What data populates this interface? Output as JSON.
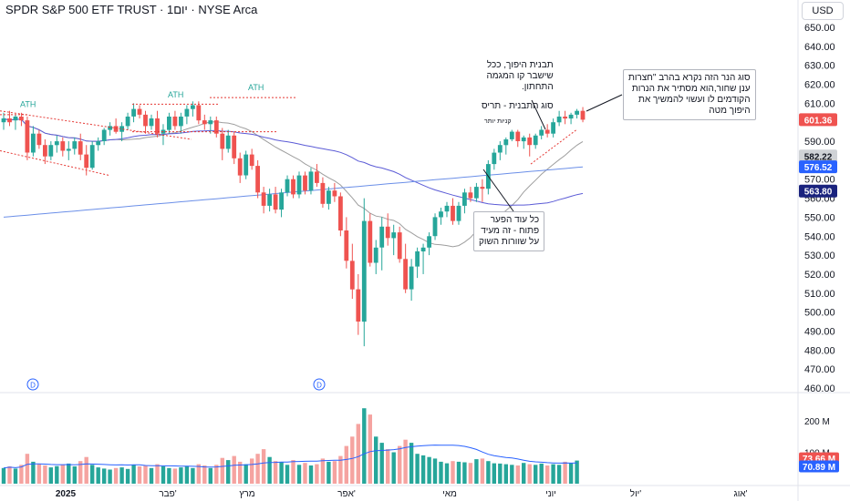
{
  "header": {
    "title": "SPDR S&P 500 ETF TRUST · 1יום · NYSE Arca"
  },
  "currency_button": "USD",
  "colors": {
    "up": "#26a69a",
    "down": "#ef5350",
    "ma_gray": "#9e9e9e",
    "ma_purple": "#5b5bd6",
    "ma_blue": "#6b8fe8",
    "ath_line": "#e53935"
  },
  "annotations": {
    "bubble_right": [
      "סוג הנר הזה נקרא בהרב \"חצרות",
      "ענן שחור,הוא מסתיר את הנרות",
      "הקודמים לו ועשוי להמשיך את",
      "היפוך מטה"
    ],
    "pattern_text": [
      "תבנית היפוך, ככל",
      "שישבר קו המגמה",
      "התחתון."
    ],
    "pattern_name": "סוג התבנית - תריס",
    "gap_text": [
      "כל עוד הפער",
      "פתוח - זה מעיד",
      "על שוורות השוק"
    ],
    "small_label": "קניות יותר",
    "ath_labels": [
      "ATH",
      "ATH",
      "ATH"
    ],
    "dividend_marker": "D"
  },
  "chart_data": {
    "type": "candlestick",
    "title": "SPDR S&P 500 ETF TRUST · 1יום · NYSE Arca",
    "price_axis": {
      "ticks": [
        460,
        470,
        480,
        490,
        500,
        510,
        520,
        530,
        540,
        550,
        560,
        570,
        580,
        590,
        600,
        610,
        620,
        630,
        640,
        650
      ],
      "range": [
        457,
        654
      ]
    },
    "price_badges": [
      {
        "value": "601.36",
        "color": "#ef5350",
        "price": 601.36
      },
      {
        "value": "582.22",
        "color": "#cfd2d6",
        "price": 582.22
      },
      {
        "value": "576.52",
        "color": "#2962ff",
        "price": 576.52
      },
      {
        "value": "563.80",
        "color": "#1a237e",
        "price": 563.8
      }
    ],
    "volume_axis": {
      "ticks": [
        {
          "label": "200 M",
          "value": 200
        },
        {
          "label": "100 M",
          "value": 100
        }
      ],
      "badges": [
        {
          "value": "73.66 M",
          "color": "#ef5350",
          "v": 73.66
        },
        {
          "value": "70.89 M",
          "color": "#2962ff",
          "v": 70.89
        }
      ]
    },
    "time_axis": [
      "2025",
      "פבר'",
      "מרץ",
      "אפר'",
      "מאי",
      "יוני",
      "יול'",
      "אוג'"
    ],
    "candles_ohlc": [
      [
        600,
        605,
        596,
        602
      ],
      [
        602,
        606,
        598,
        600
      ],
      [
        601,
        604,
        596,
        603
      ],
      [
        603,
        605,
        598,
        601
      ],
      [
        601,
        603,
        580,
        584
      ],
      [
        584,
        598,
        582,
        594
      ],
      [
        594,
        596,
        586,
        588
      ],
      [
        588,
        591,
        578,
        582
      ],
      [
        582,
        590,
        580,
        588
      ],
      [
        588,
        593,
        584,
        590
      ],
      [
        590,
        592,
        582,
        585
      ],
      [
        585,
        590,
        580,
        586
      ],
      [
        586,
        592,
        583,
        590
      ],
      [
        590,
        594,
        580,
        583
      ],
      [
        583,
        588,
        572,
        576
      ],
      [
        576,
        590,
        575,
        588
      ],
      [
        588,
        592,
        585,
        590
      ],
      [
        590,
        597,
        588,
        596
      ],
      [
        596,
        600,
        593,
        598
      ],
      [
        598,
        602,
        594,
        595
      ],
      [
        595,
        600,
        590,
        598
      ],
      [
        598,
        605,
        596,
        603
      ],
      [
        603,
        610,
        600,
        607
      ],
      [
        607,
        609,
        602,
        604
      ],
      [
        604,
        606,
        594,
        598
      ],
      [
        598,
        604,
        596,
        602
      ],
      [
        602,
        606,
        592,
        594
      ],
      [
        594,
        599,
        588,
        596
      ],
      [
        596,
        605,
        594,
        603
      ],
      [
        603,
        606,
        596,
        598
      ],
      [
        598,
        605,
        594,
        603
      ],
      [
        603,
        609,
        599,
        607
      ],
      [
        607,
        611,
        603,
        609
      ],
      [
        609,
        611,
        599,
        601
      ],
      [
        601,
        604,
        596,
        599
      ],
      [
        599,
        603,
        594,
        601
      ],
      [
        601,
        603,
        592,
        594
      ],
      [
        594,
        597,
        580,
        586
      ],
      [
        586,
        596,
        584,
        593
      ],
      [
        593,
        595,
        578,
        581
      ],
      [
        581,
        584,
        568,
        572
      ],
      [
        572,
        585,
        570,
        583
      ],
      [
        583,
        586,
        575,
        577
      ],
      [
        577,
        580,
        560,
        563
      ],
      [
        563,
        566,
        552,
        556
      ],
      [
        556,
        565,
        553,
        562
      ],
      [
        562,
        566,
        552,
        554
      ],
      [
        554,
        565,
        550,
        563
      ],
      [
        563,
        572,
        561,
        570
      ],
      [
        570,
        572,
        560,
        562
      ],
      [
        562,
        574,
        560,
        572
      ],
      [
        572,
        574,
        562,
        564
      ],
      [
        564,
        576,
        562,
        574
      ],
      [
        574,
        578,
        566,
        568
      ],
      [
        568,
        571,
        555,
        557
      ],
      [
        557,
        566,
        554,
        564
      ],
      [
        564,
        568,
        558,
        561
      ],
      [
        561,
        563,
        540,
        543
      ],
      [
        543,
        550,
        523,
        527
      ],
      [
        527,
        536,
        507,
        512
      ],
      [
        512,
        520,
        488,
        495
      ],
      [
        495,
        560,
        482,
        548
      ],
      [
        548,
        552,
        524,
        526
      ],
      [
        526,
        538,
        520,
        534
      ],
      [
        534,
        550,
        522,
        545
      ],
      [
        545,
        552,
        535,
        539
      ],
      [
        539,
        546,
        530,
        542
      ],
      [
        542,
        545,
        526,
        528
      ],
      [
        528,
        536,
        510,
        512
      ],
      [
        512,
        528,
        506,
        524
      ],
      [
        524,
        534,
        518,
        532
      ],
      [
        532,
        536,
        520,
        534
      ],
      [
        534,
        542,
        530,
        540
      ],
      [
        540,
        552,
        538,
        550
      ],
      [
        550,
        555,
        546,
        553
      ],
      [
        553,
        558,
        550,
        556
      ],
      [
        556,
        560,
        546,
        548
      ],
      [
        548,
        558,
        546,
        556
      ],
      [
        556,
        565,
        552,
        563
      ],
      [
        563,
        566,
        558,
        560
      ],
      [
        560,
        568,
        558,
        566
      ],
      [
        566,
        570,
        558,
        565
      ],
      [
        565,
        580,
        562,
        578
      ],
      [
        578,
        586,
        575,
        584
      ],
      [
        584,
        590,
        580,
        588
      ],
      [
        588,
        592,
        583,
        591
      ],
      [
        591,
        596,
        590,
        595
      ],
      [
        595,
        596,
        587,
        590
      ],
      [
        590,
        593,
        586,
        592
      ],
      [
        592,
        594,
        582,
        588
      ],
      [
        588,
        594,
        586,
        593
      ],
      [
        593,
        598,
        591,
        596
      ],
      [
        596,
        599,
        592,
        594
      ],
      [
        594,
        602,
        592,
        600
      ],
      [
        600,
        606,
        598,
        603
      ],
      [
        603,
        606,
        599,
        602
      ],
      [
        602,
        605,
        599,
        604
      ],
      [
        604,
        607,
        602,
        606
      ],
      [
        606,
        608,
        600,
        601.36
      ]
    ],
    "volume_M": [
      50,
      55,
      48,
      60,
      95,
      70,
      62,
      58,
      52,
      56,
      60,
      64,
      55,
      72,
      85,
      60,
      52,
      48,
      45,
      50,
      52,
      47,
      60,
      55,
      58,
      50,
      62,
      55,
      50,
      48,
      52,
      55,
      50,
      62,
      58,
      50,
      60,
      82,
      75,
      88,
      70,
      62,
      80,
      95,
      110,
      85,
      72,
      68,
      60,
      75,
      60,
      66,
      58,
      62,
      80,
      70,
      72,
      88,
      120,
      150,
      190,
      240,
      220,
      150,
      130,
      110,
      100,
      120,
      140,
      130,
      95,
      90,
      85,
      80,
      70,
      65,
      72,
      70,
      68,
      66,
      78,
      80,
      72,
      65,
      64,
      62,
      60,
      58,
      66,
      62,
      60,
      64,
      58,
      62,
      60,
      70,
      65,
      73.66
    ]
  }
}
